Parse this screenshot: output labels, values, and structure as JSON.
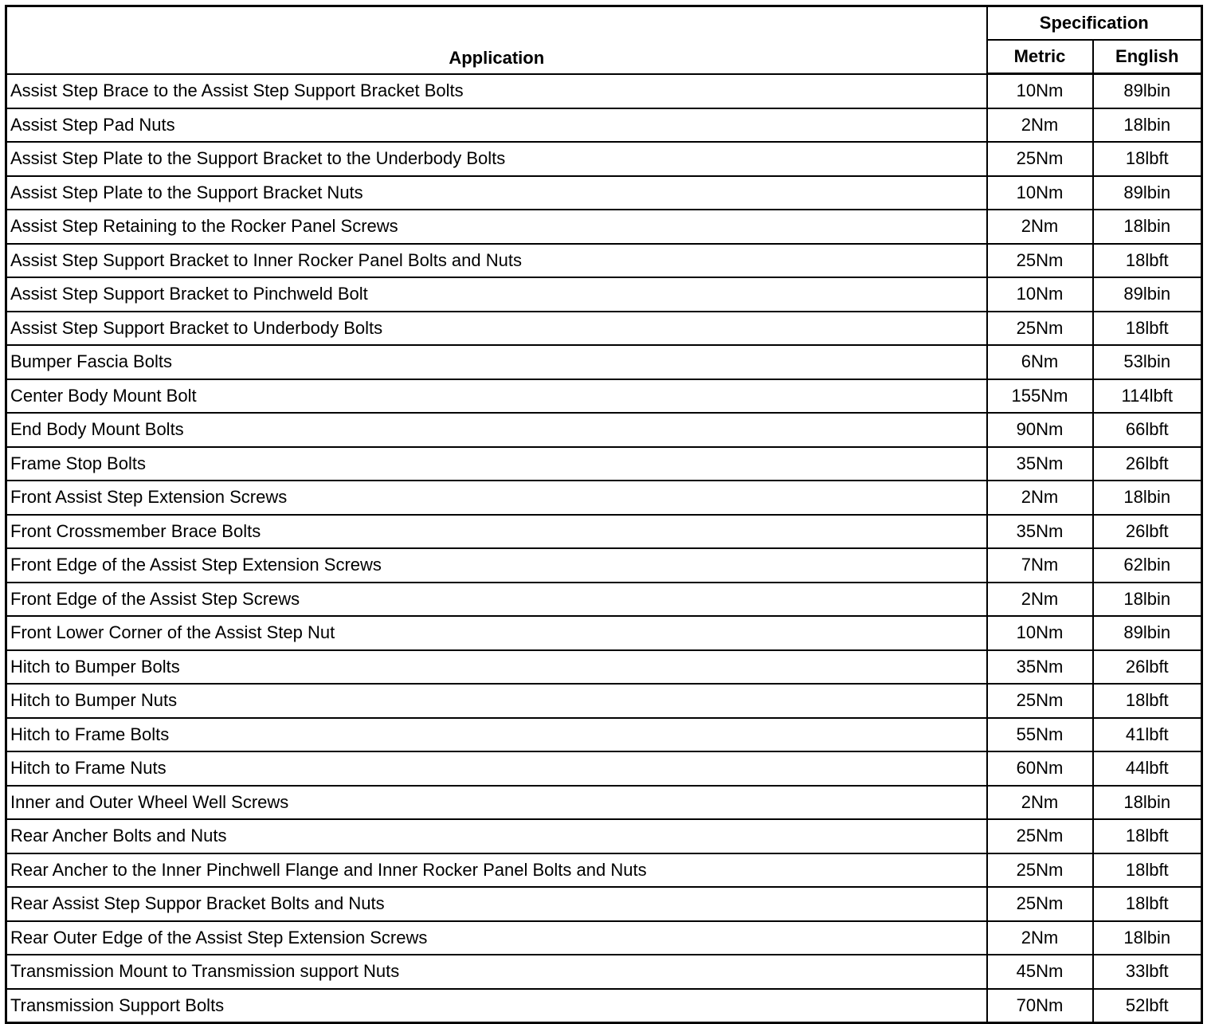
{
  "table": {
    "headers": {
      "application": "Application",
      "specification": "Specification",
      "metric": "Metric",
      "english": "English"
    },
    "rows": [
      {
        "application": "Assist Step Brace to the Assist Step Support Bracket Bolts",
        "metric": "10Nm",
        "english": "89lbin"
      },
      {
        "application": "Assist Step Pad Nuts",
        "metric": "2Nm",
        "english": "18lbin"
      },
      {
        "application": "Assist Step Plate to the Support Bracket to the Underbody Bolts",
        "metric": "25Nm",
        "english": "18lbft"
      },
      {
        "application": "Assist Step Plate to the Support Bracket Nuts",
        "metric": "10Nm",
        "english": "89lbin"
      },
      {
        "application": "Assist Step Retaining to the Rocker Panel Screws",
        "metric": "2Nm",
        "english": "18lbin"
      },
      {
        "application": "Assist Step Support Bracket to Inner Rocker Panel Bolts and Nuts",
        "metric": "25Nm",
        "english": "18lbft"
      },
      {
        "application": "Assist Step Support Bracket to Pinchweld Bolt",
        "metric": "10Nm",
        "english": "89lbin"
      },
      {
        "application": "Assist Step Support Bracket to Underbody Bolts",
        "metric": "25Nm",
        "english": "18lbft"
      },
      {
        "application": "Bumper Fascia Bolts",
        "metric": "6Nm",
        "english": "53lbin"
      },
      {
        "application": "Center Body Mount Bolt",
        "metric": "155Nm",
        "english": "114lbft"
      },
      {
        "application": "End Body Mount Bolts",
        "metric": "90Nm",
        "english": "66lbft"
      },
      {
        "application": "Frame Stop Bolts",
        "metric": "35Nm",
        "english": "26lbft"
      },
      {
        "application": "Front Assist Step Extension Screws",
        "metric": "2Nm",
        "english": "18lbin"
      },
      {
        "application": "Front Crossmember Brace Bolts",
        "metric": "35Nm",
        "english": "26lbft"
      },
      {
        "application": "Front Edge of the Assist Step Extension Screws",
        "metric": "7Nm",
        "english": "62lbin"
      },
      {
        "application": "Front Edge of the Assist Step Screws",
        "metric": "2Nm",
        "english": "18lbin"
      },
      {
        "application": "Front Lower Corner of the Assist Step Nut",
        "metric": "10Nm",
        "english": "89lbin"
      },
      {
        "application": "Hitch to Bumper Bolts",
        "metric": "35Nm",
        "english": "26lbft"
      },
      {
        "application": "Hitch to Bumper Nuts",
        "metric": "25Nm",
        "english": "18lbft"
      },
      {
        "application": "Hitch to Frame Bolts",
        "metric": "55Nm",
        "english": "41lbft"
      },
      {
        "application": "Hitch to Frame Nuts",
        "metric": "60Nm",
        "english": "44lbft"
      },
      {
        "application": "Inner and Outer Wheel Well Screws",
        "metric": "2Nm",
        "english": "18lbin"
      },
      {
        "application": "Rear Ancher Bolts and Nuts",
        "metric": "25Nm",
        "english": "18lbft"
      },
      {
        "application": "Rear Ancher to the Inner Pinchwell Flange and Inner Rocker Panel Bolts and Nuts",
        "metric": "25Nm",
        "english": "18lbft"
      },
      {
        "application": "Rear Assist Step Suppor Bracket Bolts and Nuts",
        "metric": "25Nm",
        "english": "18lbft"
      },
      {
        "application": "Rear Outer Edge of the Assist Step Extension Screws",
        "metric": "2Nm",
        "english": "18lbin"
      },
      {
        "application": "Transmission Mount to Transmission support Nuts",
        "metric": "45Nm",
        "english": "33lbft"
      },
      {
        "application": "Transmission Support Bolts",
        "metric": "70Nm",
        "english": "52lbft"
      }
    ]
  }
}
